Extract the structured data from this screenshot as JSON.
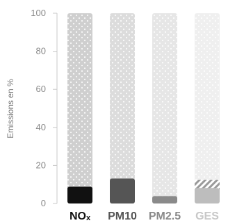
{
  "chart_data": {
    "type": "bar",
    "ylabel": "Emissions en %",
    "ylim": [
      0,
      100
    ],
    "yticks": [
      0,
      20,
      40,
      60,
      80,
      100
    ],
    "ytick_labels": [
      "0",
      "20",
      "40",
      "60",
      "80",
      "100"
    ],
    "categories": [
      {
        "main": "NO",
        "sub": "x"
      },
      {
        "main": "PM10",
        "sub": ""
      },
      {
        "main": "PM2.5",
        "sub": ""
      },
      {
        "main": "GES",
        "sub": ""
      }
    ],
    "series": [
      {
        "name": "",
        "values": [
          8.9,
          13.1,
          3.9,
          8.0
        ]
      },
      {
        "name": "",
        "values": [
          0,
          0,
          0,
          4.5
        ]
      }
    ],
    "background_total": 100,
    "colors": {
      "bars": [
        "#111111",
        "#555555",
        "#8a8a8a",
        "#bdbdbd"
      ],
      "backgrounds": [
        "#cfcfcf",
        "#dcdcdc",
        "#e6e6e6",
        "#efefef"
      ],
      "labels": [
        "#111111",
        "#555555",
        "#8a8a8a",
        "#c8c8c8"
      ],
      "hatch": "#9a9a9a",
      "axis": "#c8c8c8"
    },
    "grid": false,
    "legend": "none"
  }
}
